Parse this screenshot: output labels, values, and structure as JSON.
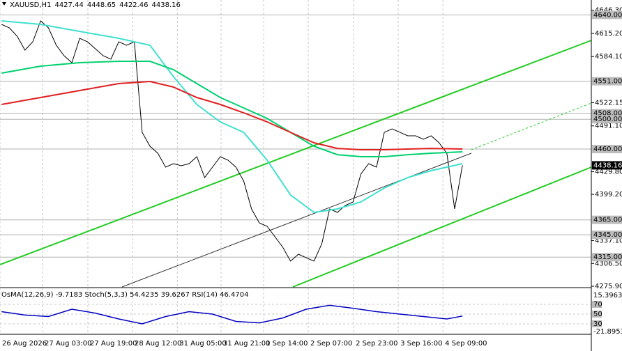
{
  "header": {
    "symbol": "XAUUSD,H1",
    "open": 4427.44,
    "high": 4448.65,
    "low": 4422.46,
    "close": 4438.16
  },
  "chart_data": {
    "type": "line",
    "ylim": [
      4275,
      4660
    ],
    "xlim": [
      -0.2,
      75.5
    ],
    "yticks": [
      {
        "value": 4646.3,
        "label": "4646.30"
      },
      {
        "value": 4615.2,
        "label": "4615.20"
      },
      {
        "value": 4584.1,
        "label": "4584.10"
      },
      {
        "value": 4522.15,
        "label": "4522.15"
      },
      {
        "value": 4491.1,
        "label": "4491.10"
      },
      {
        "value": 4429.8,
        "label": "4429.80"
      },
      {
        "value": 4399.2,
        "label": "4399.20"
      },
      {
        "value": 4337.1,
        "label": "4337.10"
      },
      {
        "value": 4306.5,
        "label": "4306.50"
      },
      {
        "value": 4275.9,
        "label": "4275.90"
      }
    ],
    "xticks": [
      {
        "value": -0.2,
        "label": "26 Aug 2026"
      },
      {
        "value": 5.25,
        "label": "27 Aug 03:00"
      },
      {
        "value": 11.05,
        "label": "27 Aug 19:00"
      },
      {
        "value": 16.76,
        "label": "28 Aug 12:00"
      },
      {
        "value": 22.5,
        "label": "31 Aug 05:00"
      },
      {
        "value": 28.1,
        "label": "31 Aug 21:00"
      },
      {
        "value": 33.55,
        "label": "1 Sep 14:00"
      },
      {
        "value": 39.26,
        "label": "2 Sep 07:00"
      },
      {
        "value": 45.07,
        "label": "2 Sep 23:00"
      },
      {
        "value": 50.78,
        "label": "3 Sep 16:00"
      },
      {
        "value": 56.5,
        "label": "4 Sep 09:00"
      }
    ],
    "levels": [
      {
        "value": 4640,
        "label": "4640.00"
      },
      {
        "value": 4551,
        "label": "4551.00"
      },
      {
        "value": 4508,
        "label": "4508.00"
      },
      {
        "value": 4500,
        "label": "4500.00"
      },
      {
        "value": 4460,
        "label": "4460.00"
      },
      {
        "value": 4365,
        "label": "4365.00"
      },
      {
        "value": 4345,
        "label": "4345.00"
      },
      {
        "value": 4315,
        "label": "4315.00"
      }
    ],
    "series": [
      {
        "color": "#000000",
        "x": [
          0,
          1,
          2,
          3,
          4,
          5,
          6,
          7,
          8,
          9,
          10,
          11,
          12,
          13,
          14,
          15,
          16,
          17,
          18,
          19,
          20,
          21,
          22,
          23,
          24,
          25,
          26,
          27,
          28,
          29,
          30,
          31,
          32,
          33,
          34,
          35,
          36,
          37,
          38,
          39,
          40,
          41,
          42,
          43,
          44,
          45,
          46,
          47,
          48,
          49,
          50,
          51,
          52,
          53,
          54,
          55,
          56,
          57,
          58,
          59
        ],
        "values": [
          4627.3,
          4622.6,
          4611.4,
          4592.7,
          4603.9,
          4632.0,
          4622.6,
          4599.3,
          4585.2,
          4575.9,
          4608.6,
          4603.9,
          4594.6,
          4585.2,
          4580.6,
          4603.9,
          4599.3,
          4603.9,
          4482.4,
          4463.8,
          4454.4,
          4435.7,
          4440.4,
          4437.6,
          4440.4,
          4449.7,
          4421.7,
          4435.7,
          4449.7,
          4445.1,
          4435.7,
          4417.0,
          4379.7,
          4360.9,
          4356.3,
          4342.3,
          4328.3,
          4309.6,
          4318.9,
          4314.2,
          4309.6,
          4332.9,
          4379.7,
          4375.0,
          4384.3,
          4389.0,
          4426.4,
          4440.4,
          4435.7,
          4482.4,
          4487.1,
          4482.4,
          4477.8,
          4477.8,
          4473.1,
          4477.8,
          4468.4,
          4454.4,
          4379.7,
          4438.16
        ]
      },
      {
        "color": "#40e0d0",
        "x": [
          0,
          5,
          10,
          15,
          19,
          22,
          25,
          28,
          31,
          34,
          37,
          40,
          43,
          46,
          49,
          52,
          55,
          59
        ],
        "values": [
          4632.0,
          4627.3,
          4617.9,
          4608.6,
          4599.3,
          4557.2,
          4519.8,
          4496.5,
          4482.4,
          4445.1,
          4398.3,
          4375.0,
          4379.7,
          4389.0,
          4407.7,
          4421.7,
          4431.1,
          4440.4
        ]
      },
      {
        "color": "#00d070",
        "x": [
          0,
          5,
          10,
          15,
          19,
          22,
          25,
          28,
          31,
          34,
          37,
          40,
          43,
          46,
          49,
          52,
          55,
          59
        ],
        "values": [
          4561.9,
          4571.2,
          4575.9,
          4577.8,
          4577.8,
          4566.6,
          4547.9,
          4529.2,
          4515.2,
          4501.1,
          4482.4,
          4463.8,
          4452.5,
          4449.7,
          4449.7,
          4452.5,
          4454.4,
          4456.3
        ]
      },
      {
        "color": "#e02020",
        "x": [
          0,
          5,
          10,
          15,
          19,
          22,
          25,
          28,
          31,
          34,
          37,
          40,
          43,
          46,
          49,
          52,
          55,
          59
        ],
        "values": [
          4519.8,
          4529.2,
          4538.5,
          4547.9,
          4550.7,
          4543.2,
          4529.2,
          4519.8,
          4508.6,
          4496.5,
          4482.4,
          4468.4,
          4460.9,
          4459.1,
          4459.1,
          4460.0,
          4460.9,
          4460.0
        ]
      }
    ],
    "indicator": {
      "label": "OsMA(12,26,9) -9.7183 Stoch(5,3,3) 54.4235 39.6267 RSI(14) 46.4704",
      "ylim": [
        0,
        100
      ],
      "yticks": [
        70,
        50,
        30
      ],
      "osma_ylim": [
        -21.8953,
        15.3963
      ],
      "osma_ticks": [
        15.3963,
        -21.8953
      ],
      "rsi": {
        "color": "#0000c0",
        "x": [
          0,
          3,
          6,
          9,
          12,
          15,
          18,
          21,
          24,
          27,
          30,
          33,
          36,
          39,
          42,
          45,
          48,
          51,
          54,
          57,
          59
        ],
        "values": [
          55,
          48,
          45,
          60,
          52,
          40,
          30,
          45,
          55,
          50,
          35,
          32,
          42,
          60,
          68,
          62,
          55,
          50,
          45,
          40,
          46
        ]
      }
    }
  }
}
